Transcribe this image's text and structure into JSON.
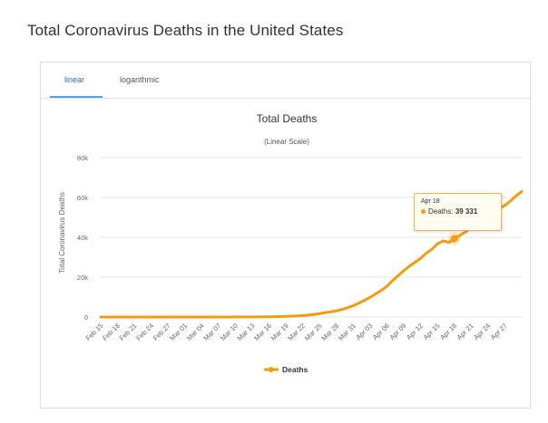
{
  "page": {
    "title": "Total Coronavirus Deaths in the United States"
  },
  "tabs": [
    {
      "label": "linear",
      "active": true
    },
    {
      "label": "logarithmic",
      "active": false
    }
  ],
  "tooltip": {
    "date": "Apr 18",
    "series": "Deaths",
    "value": "39 331"
  },
  "colors": {
    "line": "#f39c12",
    "grid": "#e6e6e6",
    "tab_active": "#4aa3df"
  },
  "chart_data": {
    "type": "line",
    "title": "Total Deaths",
    "subtitle": "(Linear Scale)",
    "xlabel": "",
    "ylabel": "Total Coronavirus Deaths",
    "ylim": [
      0,
      80000
    ],
    "yticks": [
      0,
      20000,
      40000,
      60000,
      80000
    ],
    "ytick_labels": [
      "0",
      "20k",
      "40k",
      "60k",
      "80k"
    ],
    "grid": true,
    "legend": "bottom-center",
    "x": [
      "Feb 15",
      "Feb 16",
      "Feb 17",
      "Feb 18",
      "Feb 19",
      "Feb 20",
      "Feb 21",
      "Feb 22",
      "Feb 23",
      "Feb 24",
      "Feb 25",
      "Feb 26",
      "Feb 27",
      "Feb 28",
      "Feb 29",
      "Mar 01",
      "Mar 02",
      "Mar 03",
      "Mar 04",
      "Mar 05",
      "Mar 06",
      "Mar 07",
      "Mar 08",
      "Mar 09",
      "Mar 10",
      "Mar 11",
      "Mar 12",
      "Mar 13",
      "Mar 14",
      "Mar 15",
      "Mar 16",
      "Mar 17",
      "Mar 18",
      "Mar 19",
      "Mar 20",
      "Mar 21",
      "Mar 22",
      "Mar 23",
      "Mar 24",
      "Mar 25",
      "Mar 26",
      "Mar 27",
      "Mar 28",
      "Mar 29",
      "Mar 30",
      "Mar 31",
      "Apr 01",
      "Apr 02",
      "Apr 03",
      "Apr 04",
      "Apr 05",
      "Apr 06",
      "Apr 07",
      "Apr 08",
      "Apr 09",
      "Apr 10",
      "Apr 11",
      "Apr 12",
      "Apr 13",
      "Apr 14",
      "Apr 15",
      "Apr 16",
      "Apr 17",
      "Apr 18",
      "Apr 19",
      "Apr 20",
      "Apr 21",
      "Apr 22",
      "Apr 23",
      "Apr 24",
      "Apr 25",
      "Apr 26",
      "Apr 27",
      "Apr 28",
      "Apr 29",
      "Apr 30"
    ],
    "xtick_labels": [
      "Feb 15",
      "Feb 18",
      "Feb 21",
      "Feb 24",
      "Feb 27",
      "Mar 01",
      "Mar 04",
      "Mar 07",
      "Mar 10",
      "Mar 13",
      "Mar 16",
      "Mar 19",
      "Mar 22",
      "Mar 25",
      "Mar 28",
      "Mar 31",
      "Apr 03",
      "Apr 06",
      "Apr 09",
      "Apr 12",
      "Apr 15",
      "Apr 18",
      "Apr 21",
      "Apr 24",
      "Apr 27"
    ],
    "series": [
      {
        "name": "Deaths",
        "values": [
          0,
          0,
          0,
          0,
          0,
          0,
          0,
          0,
          0,
          0,
          0,
          0,
          0,
          0,
          1,
          1,
          6,
          9,
          11,
          12,
          15,
          19,
          22,
          26,
          31,
          38,
          48,
          58,
          70,
          95,
          120,
          185,
          250,
          330,
          450,
          590,
          760,
          960,
          1290,
          1700,
          2200,
          2600,
          3150,
          3800,
          4700,
          5700,
          7000,
          8400,
          9900,
          11700,
          13400,
          15500,
          18300,
          20800,
          23300,
          25500,
          27500,
          29500,
          32000,
          34000,
          36700,
          38200,
          37400,
          39331,
          41000,
          42700,
          44800,
          47000,
          49000,
          51000,
          53000,
          54500,
          56000,
          58200,
          60800,
          63000
        ]
      }
    ],
    "highlight": {
      "x": "Apr 18",
      "y": 39331
    }
  }
}
